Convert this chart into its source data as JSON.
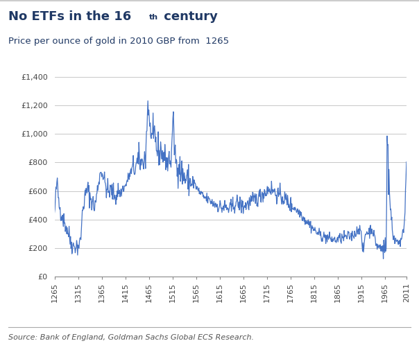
{
  "title_line1": "No ETFs in the 16",
  "title_superscript": "th",
  "title_line1_suffix": " century",
  "title_line2": "Price per ounce of gold in 2010 GBP from  1265",
  "source_text": "Source: Bank of England, Goldman Sachs Global ECS Research.",
  "title_color": "#1F3864",
  "subtitle_color": "#1F3864",
  "line_color": "#4472C4",
  "background_color": "#FFFFFF",
  "grid_color": "#BEBEBE",
  "source_color": "#555555",
  "ylim": [
    0,
    1400
  ],
  "yticks": [
    0,
    200,
    400,
    600,
    800,
    1000,
    1200,
    1400
  ],
  "ytick_labels": [
    "£0",
    "£200",
    "£400",
    "£600",
    "£800",
    "£1,000",
    "£1,200",
    "£1,400"
  ],
  "xtick_labels": [
    "1265",
    "1315",
    "1365",
    "1415",
    "1465",
    "1515",
    "1565",
    "1615",
    "1665",
    "1715",
    "1765",
    "1815",
    "1865",
    "1915",
    "1965",
    "2011"
  ],
  "xtick_values": [
    1265,
    1315,
    1365,
    1415,
    1465,
    1515,
    1565,
    1615,
    1665,
    1715,
    1765,
    1815,
    1865,
    1915,
    1965,
    2011
  ],
  "xlim": [
    1265,
    2011
  ]
}
